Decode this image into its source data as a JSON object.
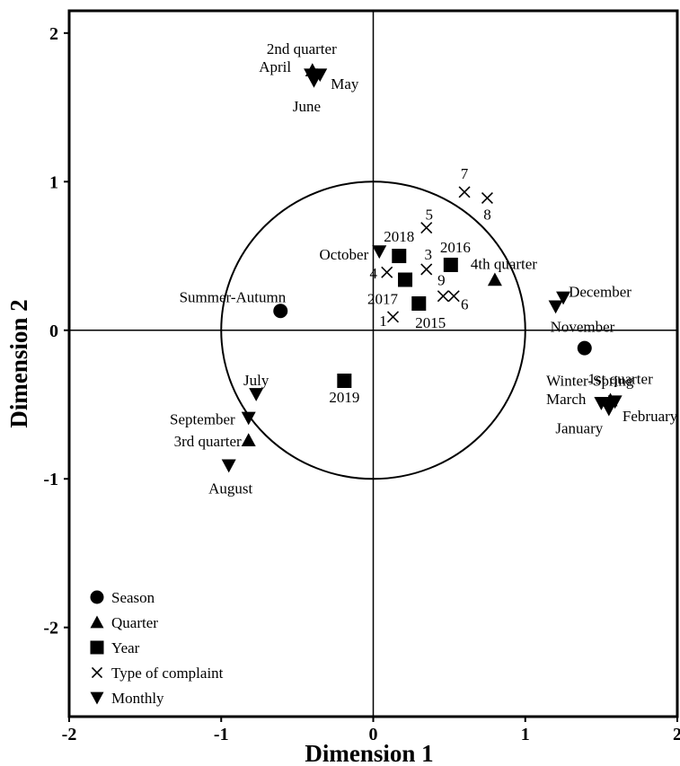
{
  "chart_data": {
    "type": "scatter",
    "title": "",
    "xlabel": "Dimension 1",
    "ylabel": "Dimension 2",
    "xlim": [
      -2,
      2
    ],
    "ylim": [
      -2.6,
      2.15
    ],
    "x_ticks": [
      -2,
      -1,
      0,
      1,
      2
    ],
    "y_ticks": [
      2,
      1,
      0,
      -1,
      -2
    ],
    "grid": false,
    "legend_position": "bottom-left",
    "reference_circle": {
      "center": [
        0,
        0
      ],
      "radius": 1
    },
    "reference_lines": {
      "x": 0,
      "y": 0
    },
    "series": [
      {
        "name": "Season",
        "marker": "circle",
        "points": [
          {
            "label": "Summer-Autumn",
            "x": -0.61,
            "y": 0.13
          },
          {
            "label": "Winter-Spring",
            "x": 1.39,
            "y": -0.12
          }
        ]
      },
      {
        "name": "Quarter",
        "marker": "triangle-up",
        "points": [
          {
            "label": "2nd quarter",
            "x": -0.4,
            "y": 1.75
          },
          {
            "label": "4th quarter",
            "x": 0.8,
            "y": 0.34
          },
          {
            "label": "3rd quarter",
            "x": -0.82,
            "y": -0.74
          },
          {
            "label": "1st quarter",
            "x": 1.56,
            "y": -0.47
          }
        ]
      },
      {
        "name": "Year",
        "marker": "square",
        "points": [
          {
            "label": "2018",
            "x": 0.17,
            "y": 0.5
          },
          {
            "label": "2016",
            "x": 0.51,
            "y": 0.44
          },
          {
            "label": "2017",
            "x": 0.21,
            "y": 0.34
          },
          {
            "label": "2015",
            "x": 0.3,
            "y": 0.18
          },
          {
            "label": "2019",
            "x": -0.19,
            "y": -0.34
          }
        ]
      },
      {
        "name": "Type of complaint",
        "marker": "x",
        "points": [
          {
            "label": "7",
            "x": 0.6,
            "y": 0.93
          },
          {
            "label": "8",
            "x": 0.75,
            "y": 0.89
          },
          {
            "label": "5",
            "x": 0.35,
            "y": 0.69
          },
          {
            "label": "3",
            "x": 0.35,
            "y": 0.41
          },
          {
            "label": "4",
            "x": 0.09,
            "y": 0.39
          },
          {
            "label": "9",
            "x": 0.46,
            "y": 0.23
          },
          {
            "label": "6",
            "x": 0.53,
            "y": 0.23
          },
          {
            "label": "1",
            "x": 0.13,
            "y": 0.09
          }
        ]
      },
      {
        "name": "Monthly",
        "marker": "triangle-down",
        "points": [
          {
            "label": "April",
            "x": -0.41,
            "y": 1.72
          },
          {
            "label": "May",
            "x": -0.35,
            "y": 1.72
          },
          {
            "label": "June",
            "x": -0.39,
            "y": 1.68
          },
          {
            "label": "October",
            "x": 0.04,
            "y": 0.53
          },
          {
            "label": "December",
            "x": 1.25,
            "y": 0.22
          },
          {
            "label": "November",
            "x": 1.2,
            "y": 0.16
          },
          {
            "label": "July",
            "x": -0.77,
            "y": -0.43
          },
          {
            "label": "September",
            "x": -0.82,
            "y": -0.59
          },
          {
            "label": "August",
            "x": -0.95,
            "y": -0.91
          },
          {
            "label": "March",
            "x": 1.5,
            "y": -0.49
          },
          {
            "label": "January",
            "x": 1.55,
            "y": -0.53
          },
          {
            "label": "February",
            "x": 1.59,
            "y": -0.48
          }
        ]
      }
    ]
  }
}
